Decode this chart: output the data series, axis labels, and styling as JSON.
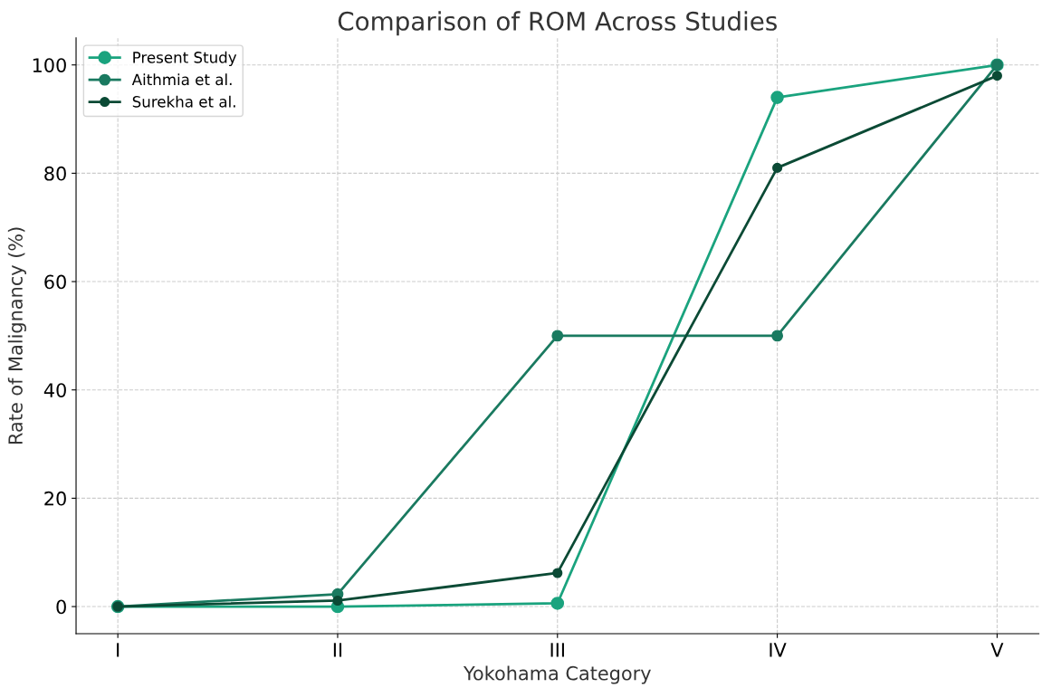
{
  "chart_data": {
    "type": "line",
    "title": "Comparison of ROM Across Studies",
    "xlabel": "Yokohama Category",
    "ylabel": "Rate of Malignancy (%)",
    "categories": [
      "I",
      "II",
      "III",
      "IV",
      "V"
    ],
    "series": [
      {
        "name": "Present Study",
        "color": "#1aa37e",
        "values": [
          0,
          0,
          0.6,
          94,
          100
        ]
      },
      {
        "name": "Aithmia et al.",
        "color": "#1a7a60",
        "values": [
          0,
          2.3,
          50,
          50,
          100
        ]
      },
      {
        "name": "Surekha et al.",
        "color": "#0b4a35",
        "values": [
          0,
          1.1,
          6.2,
          81,
          98
        ]
      }
    ],
    "ylim": [
      -5,
      105
    ],
    "yticks": [
      0,
      20,
      40,
      60,
      80,
      100
    ],
    "grid": true,
    "legend": "top left",
    "marker": "circle",
    "line_style": "solid"
  }
}
